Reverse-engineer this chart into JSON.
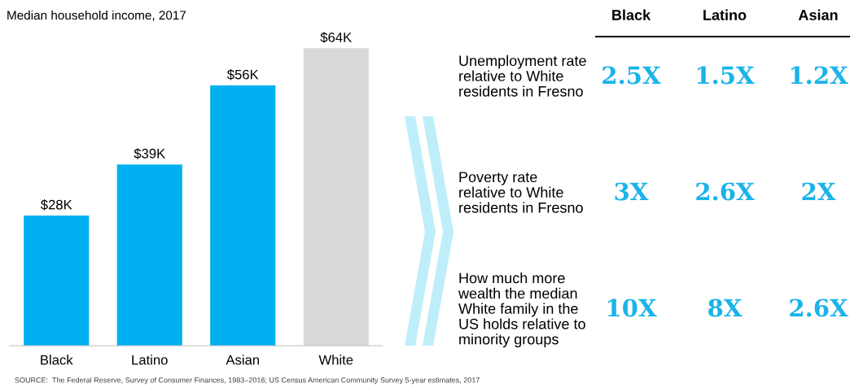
{
  "chart_data": [
    {
      "type": "bar",
      "title": "Median household income, 2017",
      "categories": [
        "Black",
        "Latino",
        "Asian",
        "White"
      ],
      "values": [
        28,
        39,
        56,
        64
      ],
      "colors": [
        "#00b0f0",
        "#00b0f0",
        "#00b0f0",
        "#d9d9d9"
      ],
      "value_labels": [
        "$28K",
        "$39K",
        "$56K",
        "$64K"
      ],
      "annotations": [
        "SOURCE:  The Federal Reserve, Survey of Consumer Finances, 1983–2016; US Census American Community Survey 5-year estimates, 2017"
      ]
    },
    {
      "type": "other",
      "categories": [
        "Black",
        "Latino",
        "Asian"
      ],
      "y_categories": [
        "Unemployment rate\nrelative to White\nresidents in Fresno",
        "Poverty rate\nrelative to White\nresidents in Fresno",
        "How much more\nwealth the median\nWhite family in the\nUS holds relative to\nminority groups"
      ],
      "color": "#1ab3ea",
      "cell_labels": [
        [
          "2.5X",
          "1.5X",
          "1.2X"
        ],
        [
          "3X",
          "2.6X",
          "2X"
        ],
        [
          "10X",
          "8X",
          "2.6X"
        ]
      ]
    }
  ]
}
